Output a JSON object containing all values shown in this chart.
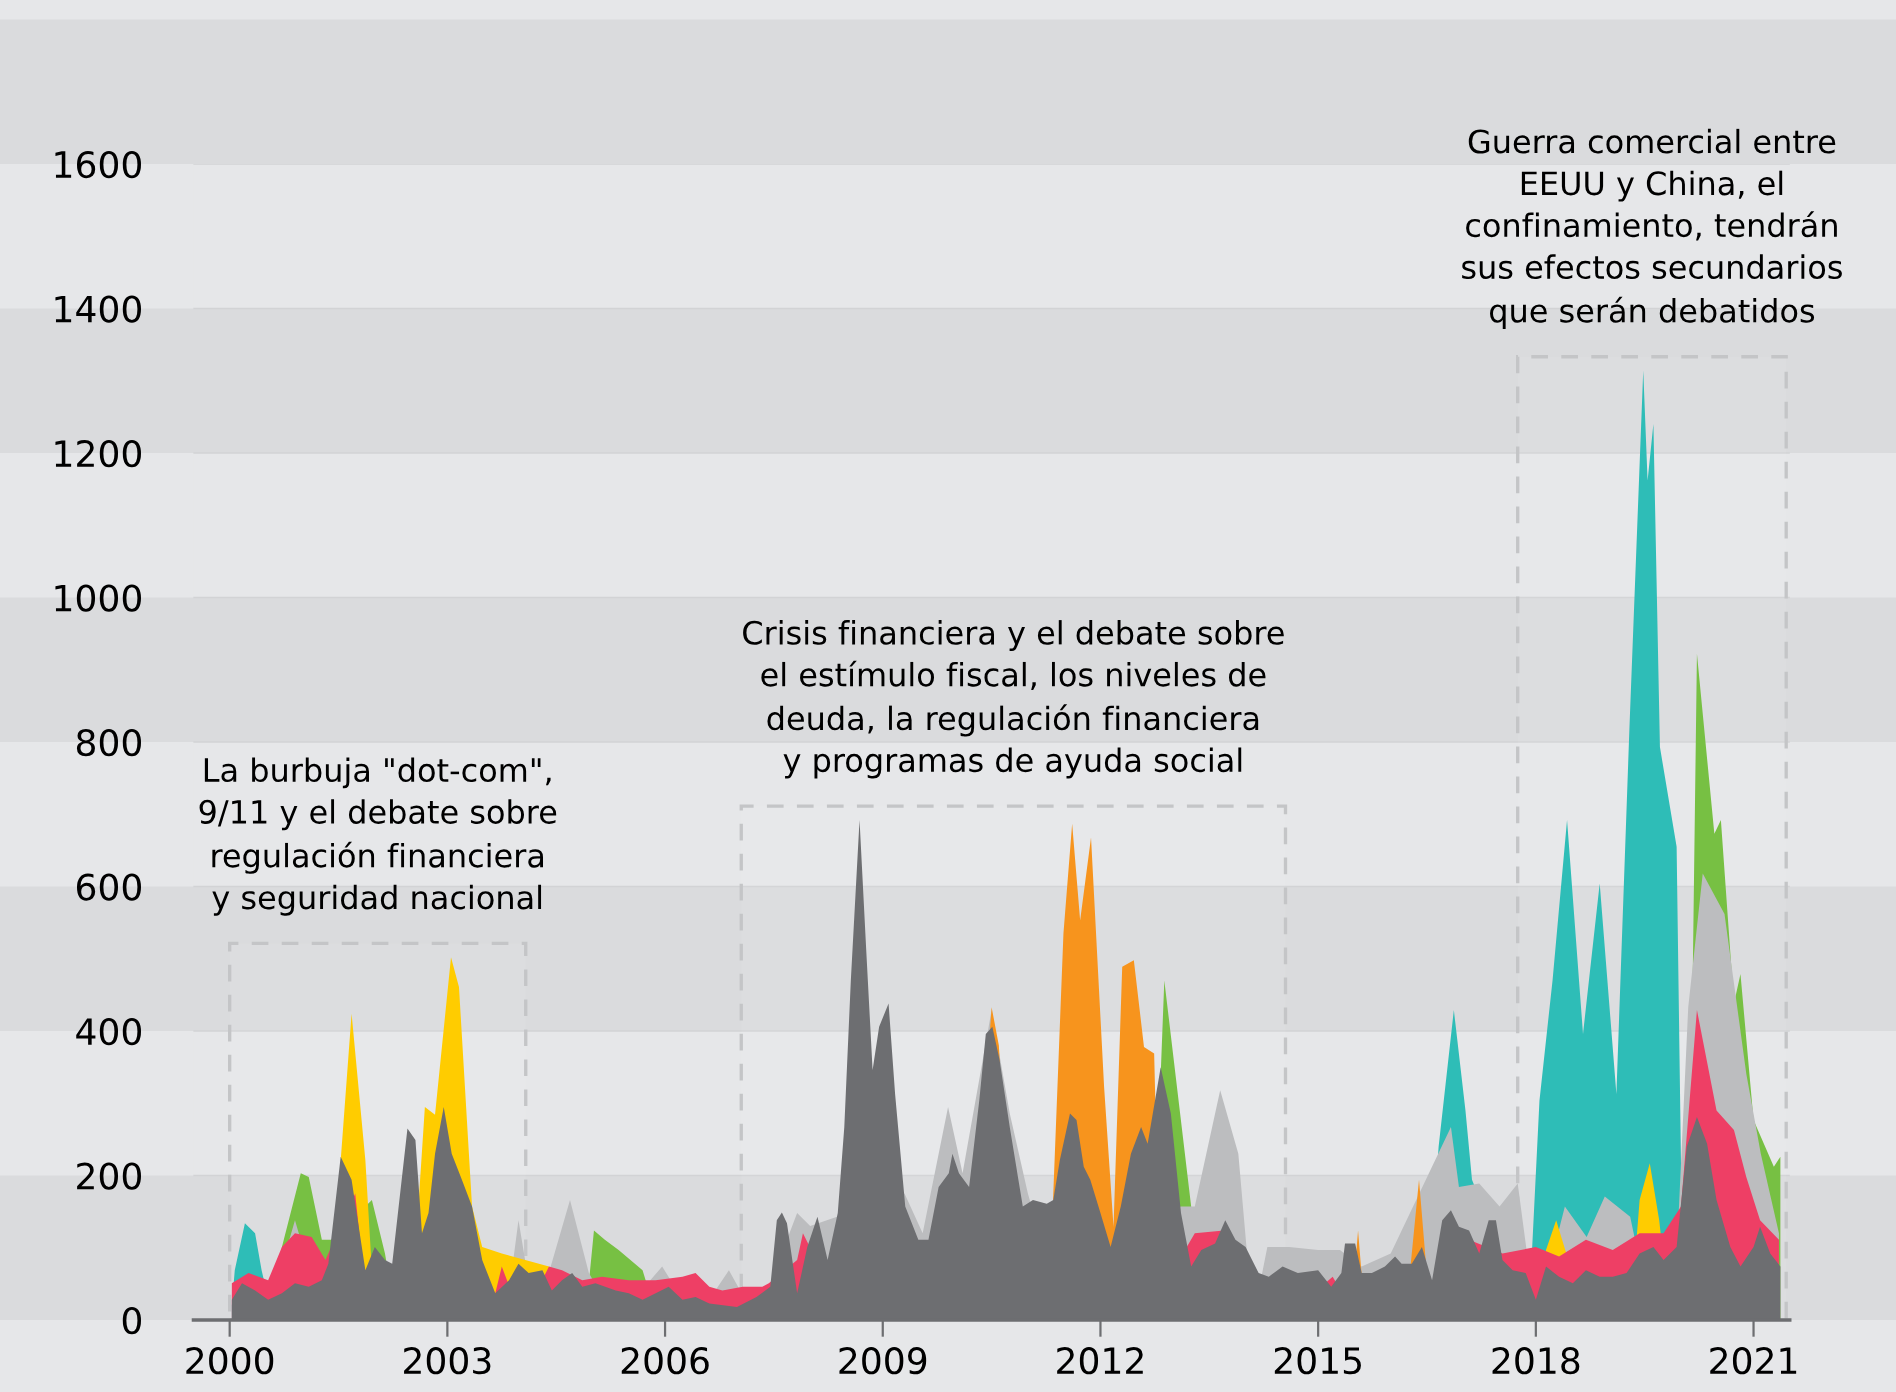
{
  "chart_data": {
    "type": "area",
    "xlim": [
      1999.5,
      2021.5
    ],
    "xticks": [
      2000,
      2003,
      2006,
      2009,
      2012,
      2015,
      2018,
      2021
    ],
    "ylim": [
      0,
      1600
    ],
    "yticks": [
      0,
      200,
      400,
      600,
      800,
      1000,
      1200,
      1400,
      1600
    ],
    "grid": "y",
    "series": [
      {
        "color": "#2ebdb7",
        "x": [
          2000.03,
          2000.07,
          2000.21,
          2000.35,
          2000.44,
          2000.6,
          2016.5,
          2016.66,
          2016.87,
          2017.03,
          2017.12,
          2017.9,
          2018.05,
          2018.23,
          2018.43,
          2018.65,
          2018.88,
          2019.11,
          2019.29,
          2019.48,
          2019.54,
          2019.62,
          2019.71,
          2019.94,
          2020.03
        ],
        "values": [
          20,
          69,
          134,
          120,
          69,
          0,
          0,
          240,
          429,
          290,
          194,
          0,
          304,
          470,
          692,
          396,
          604,
          313,
          820,
          1314,
          1162,
          1240,
          793,
          655,
          0
        ]
      },
      {
        "color": "#77c043",
        "x": [
          2000.6,
          2000.72,
          2000.98,
          2001.09,
          2001.27,
          2001.4,
          2001.96,
          2002.14,
          2002.3,
          2004.9,
          2005.02,
          2005.17,
          2005.36,
          2005.69,
          2005.9,
          2012.7,
          2012.88,
          2013.25,
          2013.45,
          2020.1,
          2020.22,
          2020.46,
          2020.55,
          2020.73,
          2020.82,
          2021.0,
          2021.28,
          2021.37
        ],
        "values": [
          0,
          101,
          203,
          198,
          111,
          111,
          166,
          92,
          0,
          0,
          124,
          111,
          97,
          69,
          0,
          0,
          470,
          157,
          0,
          0,
          922,
          673,
          692,
          438,
          479,
          277,
          212,
          226
        ]
      },
      {
        "color": "#bcbdbf",
        "x": [
          2000.5,
          2000.9,
          2001.3,
          2003.8,
          2003.98,
          2004.21,
          2004.69,
          2004.95,
          2005.32,
          2005.96,
          2006.42,
          2006.88,
          2007.26,
          2007.82,
          2008.0,
          2009.3,
          2009.55,
          2009.9,
          2010.1,
          2010.5,
          2010.75,
          2011.0,
          2011.5,
          2012.4,
          2012.7,
          2013.1,
          2013.3,
          2013.65,
          2013.9,
          2014.1,
          2014.3,
          2014.6,
          2015.0,
          2015.3,
          2015.6,
          2016.0,
          2016.83,
          2016.94,
          2017.22,
          2017.5,
          2017.75,
          2018.0,
          2018.4,
          2018.7,
          2018.95,
          2019.3,
          2019.6,
          2019.9,
          2020.1,
          2020.3,
          2020.6,
          2020.9,
          2021.1,
          2021.35
        ],
        "values": [
          0,
          138,
          0,
          0,
          138,
          0,
          166,
          65,
          0,
          74,
          0,
          69,
          0,
          148,
          130,
          175,
          120,
          295,
          203,
          429,
          286,
          175,
          0,
          0,
          0,
          157,
          157,
          318,
          230,
          0,
          101,
          101,
          97,
          97,
          74,
          92,
          267,
          184,
          189,
          157,
          189,
          0,
          157,
          115,
          171,
          143,
          0,
          0,
          433,
          618,
          562,
          341,
          230,
          120
        ]
      },
      {
        "color": "#f7941d",
        "x": [
          2010.1,
          2010.2,
          2010.5,
          2010.6,
          2010.8,
          2011.3,
          2011.35,
          2011.49,
          2011.61,
          2011.72,
          2011.87,
          2012.05,
          2012.18,
          2012.3,
          2012.46,
          2012.6,
          2012.74,
          2012.83,
          2012.95,
          2015.45,
          2015.55,
          2015.65,
          2016.2,
          2016.39,
          2016.55
        ],
        "values": [
          0,
          0,
          433,
          380,
          0,
          0,
          175,
          535,
          687,
          553,
          668,
          323,
          129,
          489,
          498,
          378,
          369,
          0,
          0,
          0,
          124,
          0,
          0,
          194,
          0
        ]
      },
      {
        "color": "#ffcc00",
        "x": [
          2001.4,
          2001.53,
          2001.68,
          2001.87,
          2002.0,
          2002.5,
          2002.6,
          2002.69,
          2002.83,
          2003.05,
          2003.16,
          2003.34,
          2003.48,
          2003.75,
          2004.4,
          2004.6,
          2018.0,
          2018.14,
          2018.28,
          2018.42,
          2019.3,
          2019.43,
          2019.57,
          2019.7,
          2019.85
        ],
        "values": [
          0,
          221,
          424,
          221,
          0,
          0,
          157,
          295,
          284,
          502,
          461,
          157,
          101,
          92,
          74,
          0,
          0,
          97,
          138,
          92,
          0,
          166,
          217,
          138,
          0
        ]
      },
      {
        "color": "#ee3f65",
        "x": [
          2000.03,
          2000.26,
          2000.53,
          2000.72,
          2000.9,
          2001.13,
          2001.32,
          2001.73,
          2001.91,
          2002.5,
          2003.0,
          2003.39,
          2003.57,
          2003.75,
          2004.03,
          2004.4,
          2004.58,
          2004.86,
          2005.13,
          2005.5,
          2005.87,
          2006.24,
          2006.42,
          2006.61,
          2006.79,
          2007.07,
          2007.34,
          2007.43,
          2007.82,
          2007.9,
          2008.5,
          2010.0,
          2011.0,
          2012.0,
          2012.6,
          2013.3,
          2013.7,
          2014.5,
          2015.2,
          2015.55,
          2016.43,
          2017.08,
          2017.54,
          2018.0,
          2018.32,
          2018.69,
          2019.06,
          2019.43,
          2019.76,
          2020.0,
          2020.22,
          2020.49,
          2020.73,
          2020.9,
          2021.09,
          2021.35
        ],
        "values": [
          51,
          65,
          55,
          101,
          120,
          115,
          83,
          175,
          0,
          0,
          0,
          0,
          0,
          74,
          0,
          74,
          69,
          55,
          60,
          55,
          55,
          60,
          65,
          46,
          41,
          46,
          46,
          51,
          83,
          120,
          0,
          0,
          0,
          0,
          0,
          120,
          124,
          0,
          60,
          0,
          0,
          111,
          92,
          101,
          88,
          111,
          97,
          120,
          120,
          157,
          429,
          290,
          263,
          198,
          138,
          111
        ]
      },
      {
        "color": "#6d6e71",
        "x": [
          2000.03,
          2000.17,
          2000.35,
          2000.53,
          2000.72,
          2000.9,
          2001.09,
          2001.27,
          2001.36,
          2001.53,
          2001.68,
          2001.87,
          2002.0,
          2002.14,
          2002.24,
          2002.45,
          2002.56,
          2002.65,
          2002.74,
          2002.83,
          2002.95,
          2003.06,
          2003.2,
          2003.34,
          2003.48,
          2003.66,
          2003.85,
          2003.98,
          2004.12,
          2004.31,
          2004.44,
          2004.58,
          2004.72,
          2004.86,
          2005.04,
          2005.32,
          2005.5,
          2005.69,
          2005.87,
          2006.05,
          2006.24,
          2006.42,
          2006.61,
          2006.99,
          2007.26,
          2007.45,
          2007.54,
          2007.61,
          2007.68,
          2007.82,
          2007.96,
          2008.1,
          2008.24,
          2008.38,
          2008.47,
          2008.56,
          2008.68,
          2008.77,
          2008.86,
          2008.95,
          2009.08,
          2009.17,
          2009.31,
          2009.49,
          2009.63,
          2009.77,
          2009.91,
          2009.96,
          2010.05,
          2010.19,
          2010.33,
          2010.42,
          2010.51,
          2010.61,
          2010.75,
          2010.93,
          2011.07,
          2011.26,
          2011.35,
          2011.44,
          2011.58,
          2011.67,
          2011.77,
          2011.86,
          2012.0,
          2012.14,
          2012.28,
          2012.42,
          2012.56,
          2012.65,
          2012.83,
          2012.97,
          2013.11,
          2013.25,
          2013.39,
          2013.58,
          2013.72,
          2013.86,
          2014.0,
          2014.18,
          2014.32,
          2014.51,
          2014.72,
          2015.0,
          2015.18,
          2015.32,
          2015.37,
          2015.51,
          2015.6,
          2015.74,
          2015.92,
          2016.06,
          2016.15,
          2016.29,
          2016.43,
          2016.57,
          2016.71,
          2016.83,
          2016.94,
          2017.08,
          2017.22,
          2017.35,
          2017.45,
          2017.54,
          2017.68,
          2017.86,
          2018.0,
          2018.14,
          2018.32,
          2018.51,
          2018.69,
          2018.88,
          2019.06,
          2019.25,
          2019.43,
          2019.62,
          2019.76,
          2019.94,
          2020.08,
          2020.22,
          2020.36,
          2020.49,
          2020.68,
          2020.82,
          2021.0,
          2021.09,
          2021.23,
          2021.37
        ],
        "values": [
          28,
          51,
          41,
          28,
          37,
          51,
          46,
          55,
          78,
          226,
          194,
          69,
          101,
          83,
          78,
          265,
          249,
          120,
          148,
          230,
          295,
          230,
          194,
          157,
          83,
          37,
          55,
          78,
          65,
          69,
          41,
          55,
          65,
          46,
          51,
          41,
          37,
          28,
          37,
          46,
          28,
          32,
          23,
          18,
          32,
          46,
          138,
          149,
          134,
          37,
          101,
          143,
          83,
          148,
          267,
          470,
          692,
          516,
          346,
          406,
          438,
          313,
          157,
          111,
          111,
          184,
          203,
          230,
          203,
          184,
          304,
          396,
          406,
          360,
          267,
          157,
          166,
          161,
          166,
          221,
          286,
          277,
          212,
          194,
          148,
          101,
          157,
          230,
          267,
          244,
          350,
          286,
          148,
          74,
          97,
          106,
          138,
          111,
          101,
          65,
          60,
          74,
          65,
          69,
          46,
          65,
          106,
          106,
          65,
          65,
          74,
          88,
          78,
          78,
          101,
          55,
          138,
          152,
          129,
          124,
          92,
          138,
          138,
          83,
          69,
          65,
          28,
          74,
          60,
          51,
          69,
          60,
          60,
          65,
          92,
          101,
          83,
          101,
          240,
          281,
          244,
          166,
          101,
          74,
          101,
          129,
          92,
          74
        ]
      }
    ],
    "bands": [
      {
        "axis": "x",
        "from": 2000,
        "to": 2004.08,
        "label": "La burbuja \"dot-com\",\n9/11 y el debate sobre\nregulación financiera\ny seguridad nacional"
      },
      {
        "axis": "x",
        "from": 2007.05,
        "to": 2014.55,
        "label": "Crisis financiera y el debate sobre\nel estímulo fiscal, los niveles de\ndeuda, la regulación financiera\ny programas de ayuda social"
      },
      {
        "axis": "x",
        "from": 2017.75,
        "to": 2021.45,
        "label": "Guerra comercial entre\nEEUU y China, el\nconfinamiento, tendrán\nsus efectos secundarios\nque serán debatidos"
      }
    ]
  }
}
